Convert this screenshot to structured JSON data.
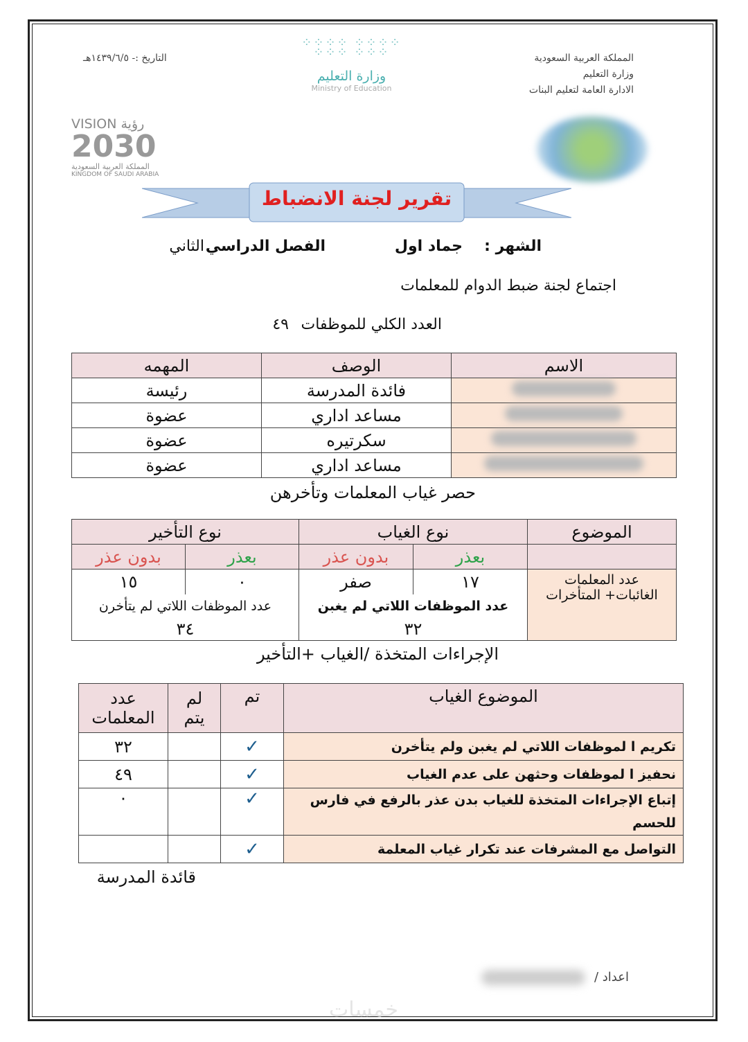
{
  "header": {
    "right_lines": [
      "المملكة العربية السعودية",
      "وزارة التعليم",
      "الادارة العامة لتعليم البنات"
    ],
    "date": "التاريخ :- ١٤٣٩/٦/٥هـ",
    "ministry_logo_ar": "وزارة التعليم",
    "ministry_logo_en": "Ministry of Education",
    "vision_logo": {
      "top": "VISION رؤية",
      "year": "2030",
      "ar": "المملكة العربية السعودية",
      "en": "KINGDOM OF SAUDI ARABIA"
    }
  },
  "title": "تقرير لجنة الانضباط",
  "info": {
    "month_label": "الشهر :",
    "month_value": "جماد اول",
    "term_label": "الفصل الدراسي",
    "term_value": "الثاني",
    "meeting": "اجتماع لجنة ضبط الدوام للمعلمات",
    "total_label": "العدد الكلي للموظفات",
    "total_value": "٤٩"
  },
  "committee": {
    "headers": [
      "الاسم",
      "الوصف",
      "المهمه"
    ],
    "rows": [
      {
        "role": "فائدة المدرسة",
        "task": "رئيسة"
      },
      {
        "role": "مساعد اداري",
        "task": "عضوة"
      },
      {
        "role": "سكرتيره",
        "task": "عضوة"
      },
      {
        "role": "مساعد اداري",
        "task": "عضوة"
      }
    ]
  },
  "absence_title": "حصر غياب المعلمات وتأخرهن",
  "absence": {
    "subject": "الموضوع",
    "absence_type": "نوع الغياب",
    "late_type": "نوع التأخير",
    "excused": "بعذر",
    "unexcused": "بدون عذر",
    "row_label": "عدد المعلمات الغائبات+ المتأخرات",
    "abs_excused": "١٧",
    "abs_unexcused": "صفر",
    "late_excused": "٠",
    "late_unexcused": "١٥",
    "not_absent_label": "عدد الموظفات اللاتي لم يغبن",
    "not_late_label": "عدد الموظفات اللاتي لم يتأخرن",
    "not_absent": "٣٢",
    "not_late": "٣٤",
    "colors": {
      "excused": "#2ea24a",
      "unexcused": "#d9534f"
    }
  },
  "actions_title": "الإجراءات المتخذة  /الغياب +التأخير",
  "actions": {
    "headers": [
      "الموضوع الغياب",
      "تم",
      "لم يتم",
      "عدد المعلمات"
    ],
    "rows": [
      {
        "topic": "تكريم ا لموظفات اللاتي لم يغبن ولم يتأخرن",
        "done": "✓",
        "count": "٣٢"
      },
      {
        "topic": "نحفيز  ا لموظفات وحثهن على عدم الغياب",
        "done": "✓",
        "count": "٤٩"
      },
      {
        "topic": "إتباع الإجراءات المتخذة للغياب بدن عذر بالرفع في فارس للحسم",
        "done": "✓",
        "count": "٠"
      },
      {
        "topic": "التواصل مع المشرفات عند تكرار  غياب المعلمة",
        "done": "✓",
        "count": ""
      }
    ]
  },
  "signature": "قائدة المدرسة",
  "prepared_by": "اعداد /",
  "watermark": "خمسات"
}
